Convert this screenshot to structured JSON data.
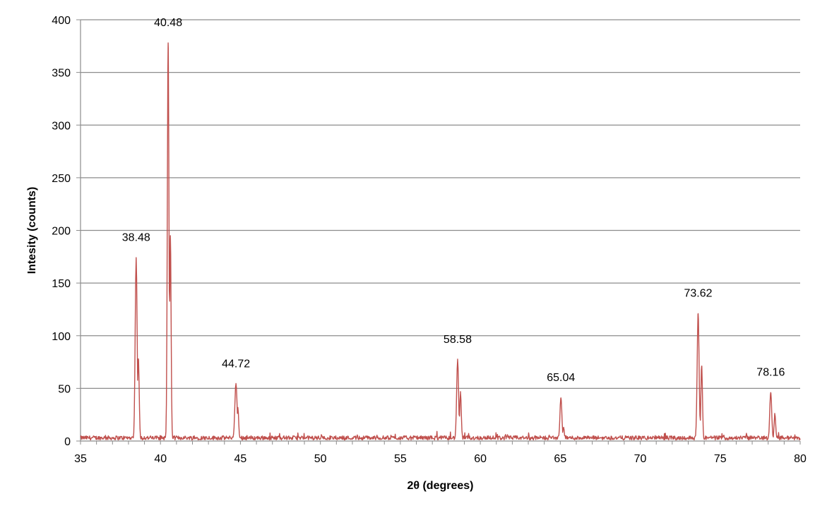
{
  "chart_data": {
    "type": "line",
    "xlabel": "2θ (degrees)",
    "ylabel": "Intesity (counts)",
    "xlim": [
      35,
      80
    ],
    "ylim": [
      0,
      400
    ],
    "x_ticks": [
      35,
      40,
      45,
      50,
      55,
      60,
      65,
      70,
      75,
      80
    ],
    "y_ticks": [
      0,
      50,
      100,
      150,
      200,
      250,
      300,
      350,
      400
    ],
    "grid": "horizontal",
    "series_color": "#c0504d",
    "baseline": {
      "low": 1,
      "high": 5
    },
    "peaks": [
      {
        "x": 38.48,
        "y": 174,
        "width": 0.06
      },
      {
        "x": 38.62,
        "y": 78,
        "width": 0.05
      },
      {
        "x": 40.48,
        "y": 378,
        "width": 0.05
      },
      {
        "x": 40.62,
        "y": 195,
        "width": 0.045
      },
      {
        "x": 44.72,
        "y": 54,
        "width": 0.07
      },
      {
        "x": 44.84,
        "y": 30,
        "width": 0.05
      },
      {
        "x": 58.58,
        "y": 77,
        "width": 0.06
      },
      {
        "x": 58.76,
        "y": 45,
        "width": 0.05
      },
      {
        "x": 65.04,
        "y": 41,
        "width": 0.06
      },
      {
        "x": 65.2,
        "y": 12,
        "width": 0.05
      },
      {
        "x": 73.62,
        "y": 121,
        "width": 0.06
      },
      {
        "x": 73.84,
        "y": 71,
        "width": 0.05
      },
      {
        "x": 78.16,
        "y": 46,
        "width": 0.06
      },
      {
        "x": 78.42,
        "y": 25,
        "width": 0.05
      }
    ],
    "annotations": [
      {
        "text": "38.48",
        "x": 38.48,
        "y": 174
      },
      {
        "text": "40.48",
        "x": 40.48,
        "y": 378
      },
      {
        "text": "44.72",
        "x": 44.72,
        "y": 54
      },
      {
        "text": "58.58",
        "x": 58.58,
        "y": 77
      },
      {
        "text": "65.04",
        "x": 65.04,
        "y": 41
      },
      {
        "text": "73.62",
        "x": 73.62,
        "y": 121
      },
      {
        "text": "78.16",
        "x": 78.16,
        "y": 46
      }
    ]
  }
}
